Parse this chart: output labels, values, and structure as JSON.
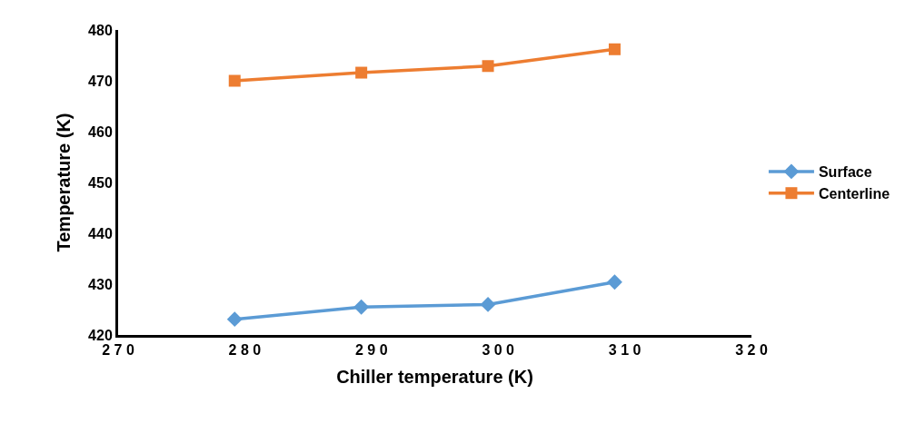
{
  "chart_data": {
    "type": "line",
    "xlabel": "Chiller temperature (K)",
    "ylabel": "Temperature (K)",
    "x": [
      279.2,
      289.2,
      299.2,
      309.2
    ],
    "series": [
      {
        "name": "Surface",
        "color": "#5b9bd5",
        "marker": "diamond",
        "values": [
          423.1,
          425.5,
          426.0,
          430.4
        ]
      },
      {
        "name": "Centerline",
        "color": "#ed7d31",
        "marker": "square",
        "values": [
          470.0,
          471.6,
          472.9,
          476.2
        ]
      }
    ],
    "xlim": [
      270,
      320
    ],
    "xticks": [
      270,
      280,
      290,
      300,
      310,
      320
    ],
    "ylim": [
      420,
      480
    ],
    "yticks": [
      420,
      430,
      440,
      450,
      460,
      470,
      480
    ],
    "grid": false,
    "legend": "right",
    "line_style": "solid"
  }
}
